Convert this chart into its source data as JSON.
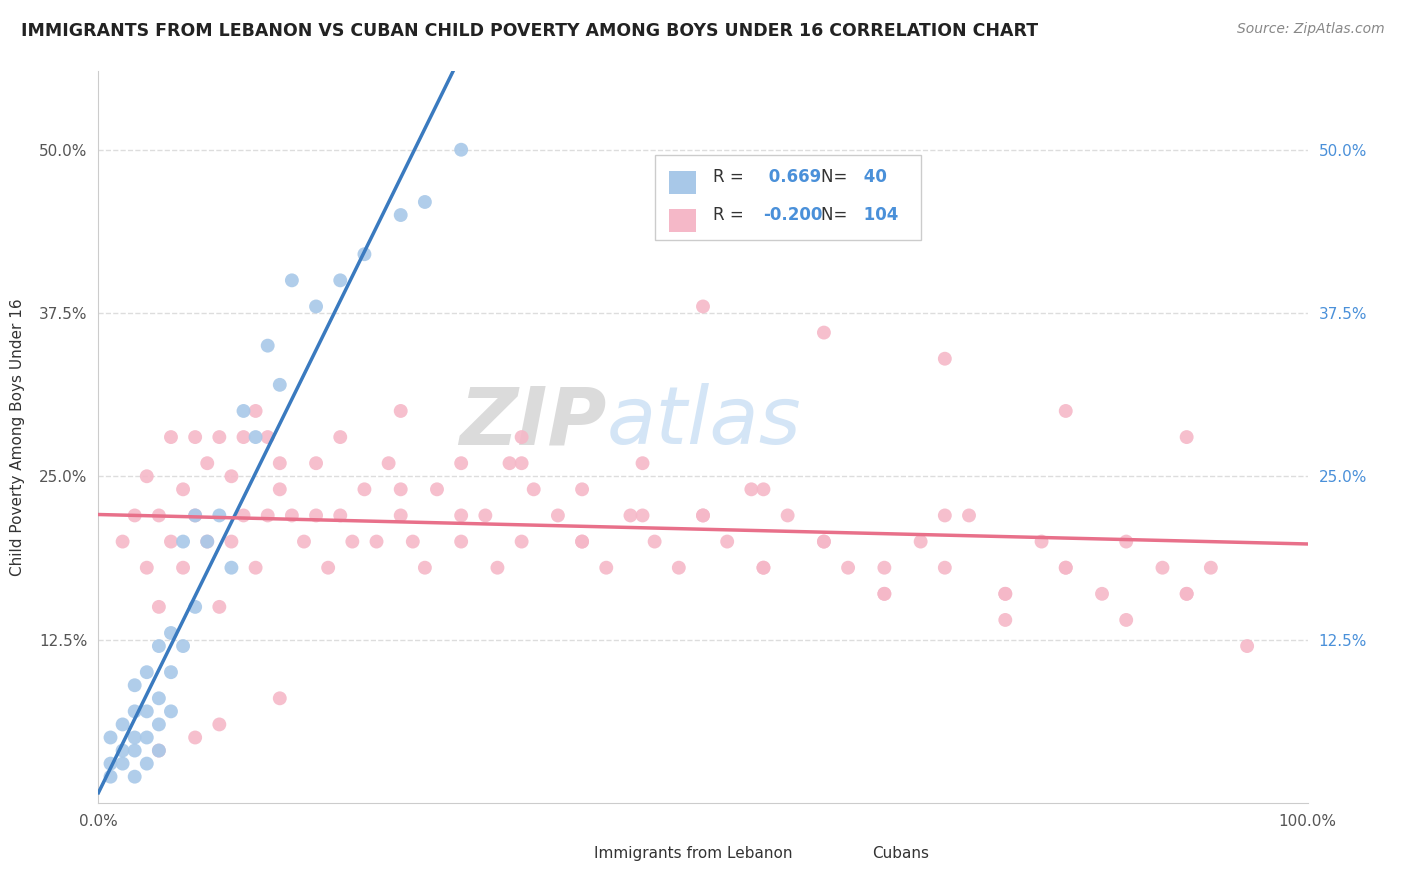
{
  "title": "IMMIGRANTS FROM LEBANON VS CUBAN CHILD POVERTY AMONG BOYS UNDER 16 CORRELATION CHART",
  "source": "Source: ZipAtlas.com",
  "ylabel": "Child Poverty Among Boys Under 16",
  "xlim": [
    0.0,
    1.0
  ],
  "ylim": [
    0.0,
    0.56
  ],
  "yticks": [
    0.125,
    0.25,
    0.375,
    0.5
  ],
  "ytick_labels": [
    "12.5%",
    "25.0%",
    "37.5%",
    "50.0%"
  ],
  "xticks": [
    0.0,
    0.5,
    1.0
  ],
  "xtick_labels": [
    "0.0%",
    "",
    "100.0%"
  ],
  "lebanon_R": 0.669,
  "lebanon_N": 40,
  "cuban_R": -0.2,
  "cuban_N": 104,
  "lebanon_color": "#a8c8e8",
  "cuban_color": "#f5b8c8",
  "lebanon_line_color": "#3a7abf",
  "cuban_line_color": "#e8708a",
  "background_color": "#ffffff",
  "grid_color": "#dddddd",
  "title_fontsize": 12.5,
  "axis_label_fontsize": 11,
  "tick_fontsize": 11,
  "lebanon_x": [
    0.01,
    0.01,
    0.01,
    0.02,
    0.02,
    0.02,
    0.03,
    0.03,
    0.03,
    0.03,
    0.03,
    0.04,
    0.04,
    0.04,
    0.04,
    0.05,
    0.05,
    0.05,
    0.05,
    0.06,
    0.06,
    0.06,
    0.07,
    0.07,
    0.08,
    0.08,
    0.09,
    0.1,
    0.11,
    0.12,
    0.13,
    0.14,
    0.15,
    0.16,
    0.18,
    0.2,
    0.22,
    0.25,
    0.27,
    0.3
  ],
  "lebanon_y": [
    0.02,
    0.03,
    0.05,
    0.03,
    0.04,
    0.06,
    0.02,
    0.04,
    0.05,
    0.07,
    0.09,
    0.03,
    0.05,
    0.07,
    0.1,
    0.04,
    0.06,
    0.08,
    0.12,
    0.07,
    0.1,
    0.13,
    0.12,
    0.2,
    0.15,
    0.22,
    0.2,
    0.22,
    0.18,
    0.3,
    0.28,
    0.35,
    0.32,
    0.4,
    0.38,
    0.4,
    0.42,
    0.45,
    0.46,
    0.5
  ],
  "cuban_x": [
    0.02,
    0.03,
    0.04,
    0.04,
    0.05,
    0.05,
    0.06,
    0.06,
    0.07,
    0.07,
    0.08,
    0.08,
    0.09,
    0.09,
    0.1,
    0.1,
    0.11,
    0.11,
    0.12,
    0.12,
    0.13,
    0.13,
    0.14,
    0.14,
    0.15,
    0.16,
    0.17,
    0.18,
    0.18,
    0.19,
    0.2,
    0.21,
    0.22,
    0.23,
    0.24,
    0.25,
    0.26,
    0.27,
    0.28,
    0.3,
    0.32,
    0.33,
    0.34,
    0.35,
    0.36,
    0.38,
    0.4,
    0.42,
    0.44,
    0.46,
    0.48,
    0.5,
    0.52,
    0.54,
    0.55,
    0.57,
    0.6,
    0.62,
    0.65,
    0.68,
    0.7,
    0.72,
    0.75,
    0.78,
    0.8,
    0.83,
    0.85,
    0.88,
    0.9,
    0.92,
    0.25,
    0.3,
    0.35,
    0.4,
    0.45,
    0.5,
    0.55,
    0.6,
    0.65,
    0.7,
    0.75,
    0.8,
    0.85,
    0.9,
    0.95,
    0.5,
    0.6,
    0.7,
    0.8,
    0.9,
    0.15,
    0.2,
    0.25,
    0.3,
    0.35,
    0.4,
    0.45,
    0.55,
    0.65,
    0.75,
    0.1,
    0.15,
    0.05,
    0.08
  ],
  "cuban_y": [
    0.2,
    0.22,
    0.18,
    0.25,
    0.15,
    0.22,
    0.2,
    0.28,
    0.18,
    0.24,
    0.22,
    0.28,
    0.2,
    0.26,
    0.15,
    0.28,
    0.2,
    0.25,
    0.22,
    0.28,
    0.18,
    0.3,
    0.22,
    0.28,
    0.24,
    0.22,
    0.2,
    0.26,
    0.22,
    0.18,
    0.22,
    0.2,
    0.24,
    0.2,
    0.26,
    0.22,
    0.2,
    0.18,
    0.24,
    0.2,
    0.22,
    0.18,
    0.26,
    0.2,
    0.24,
    0.22,
    0.2,
    0.18,
    0.22,
    0.2,
    0.18,
    0.22,
    0.2,
    0.24,
    0.18,
    0.22,
    0.2,
    0.18,
    0.16,
    0.2,
    0.18,
    0.22,
    0.16,
    0.2,
    0.18,
    0.16,
    0.2,
    0.18,
    0.16,
    0.18,
    0.3,
    0.26,
    0.28,
    0.24,
    0.26,
    0.22,
    0.24,
    0.2,
    0.18,
    0.22,
    0.16,
    0.18,
    0.14,
    0.16,
    0.12,
    0.38,
    0.36,
    0.34,
    0.3,
    0.28,
    0.26,
    0.28,
    0.24,
    0.22,
    0.26,
    0.2,
    0.22,
    0.18,
    0.16,
    0.14,
    0.06,
    0.08,
    0.04,
    0.05
  ]
}
